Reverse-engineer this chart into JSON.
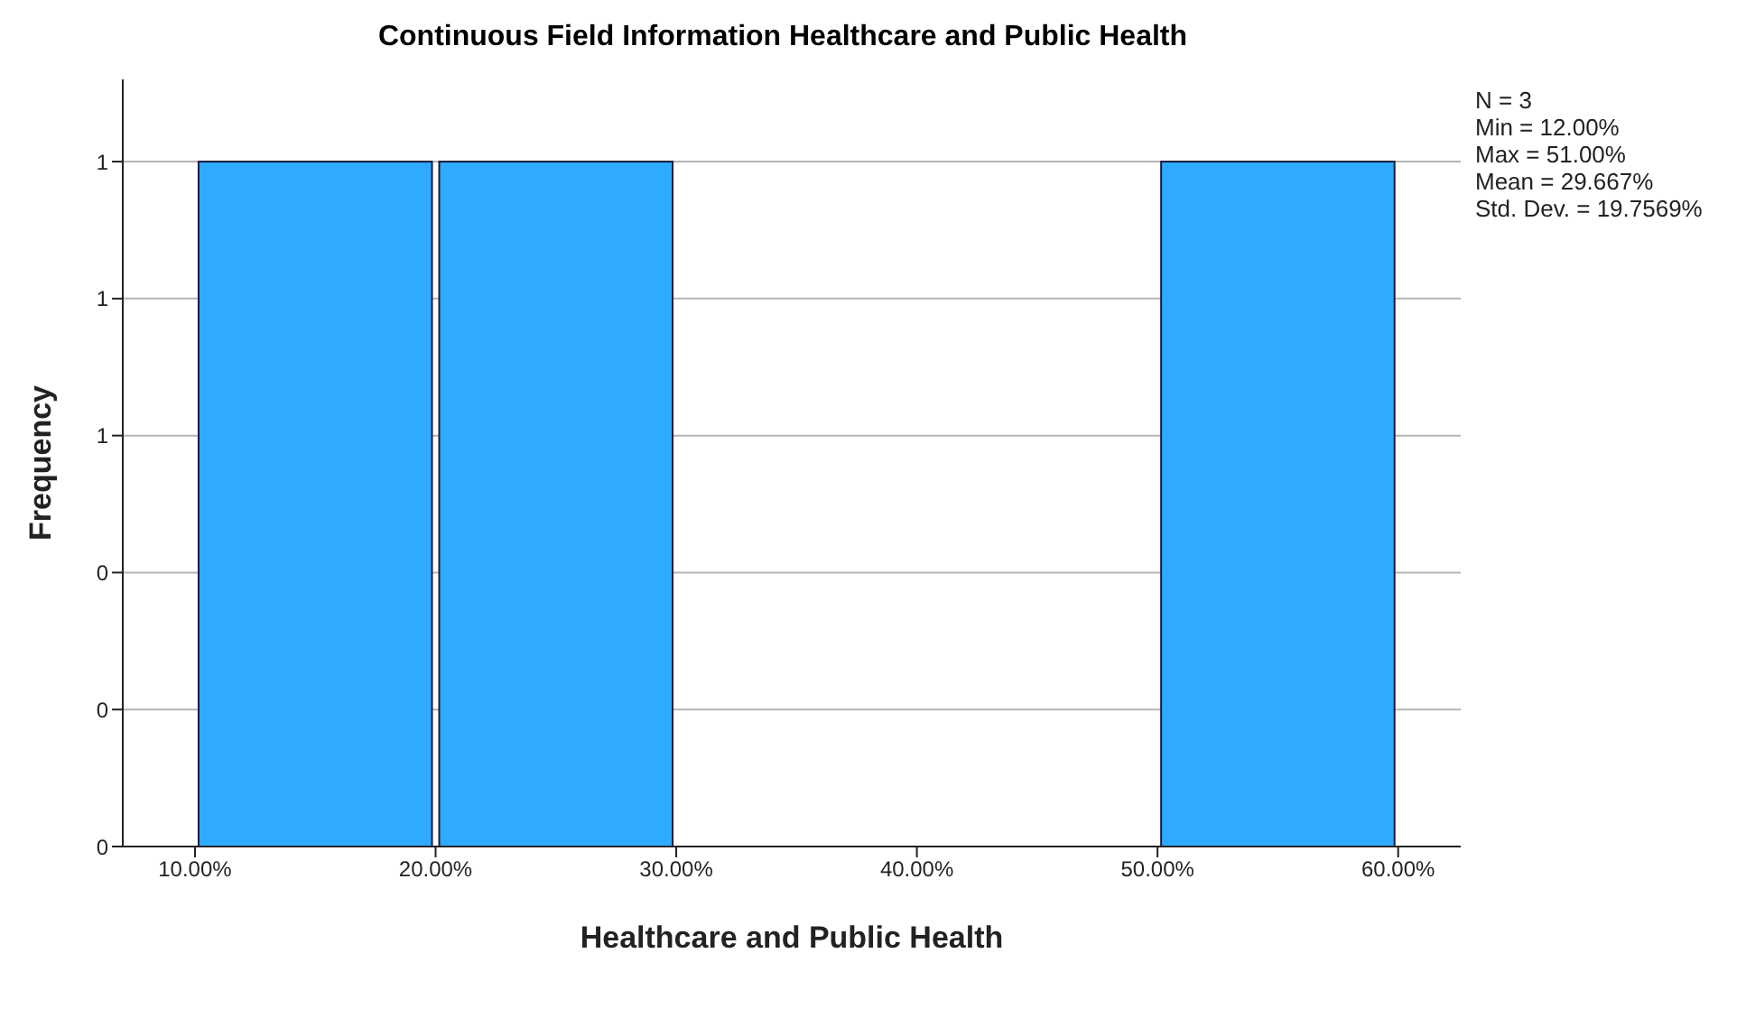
{
  "chart_data": {
    "type": "histogram",
    "title": "Continuous Field Information Healthcare and Public Health",
    "xlabel": "Healthcare and Public Health",
    "ylabel": "Frequency",
    "bins": [
      10,
      20,
      30,
      40,
      50,
      60
    ],
    "values": [
      1,
      1,
      0,
      0,
      1
    ],
    "color": "#2eaaff",
    "xlim": [
      7,
      62.6
    ],
    "xticks": [
      {
        "value": 10,
        "label": "10.00%"
      },
      {
        "value": 20,
        "label": "20.00%"
      },
      {
        "value": 30,
        "label": "30.00%"
      },
      {
        "value": 40,
        "label": "40.00%"
      },
      {
        "value": 50,
        "label": "50.00%"
      },
      {
        "value": 60,
        "label": "60.00%"
      }
    ],
    "ylim": [
      0,
      1.12
    ],
    "yticks": [
      {
        "value": 0,
        "label": "0"
      },
      {
        "value": 0.2,
        "label": "0"
      },
      {
        "value": 0.4,
        "label": "0"
      },
      {
        "value": 0.6,
        "label": "1"
      },
      {
        "value": 0.8,
        "label": "1"
      },
      {
        "value": 1,
        "label": "1"
      }
    ],
    "grid": "y",
    "annotations": [
      "N = 3",
      "Min = 12.00%",
      "Max = 51.00%",
      "Mean = 29.667%",
      "Std. Dev. = 19.7569%"
    ]
  }
}
